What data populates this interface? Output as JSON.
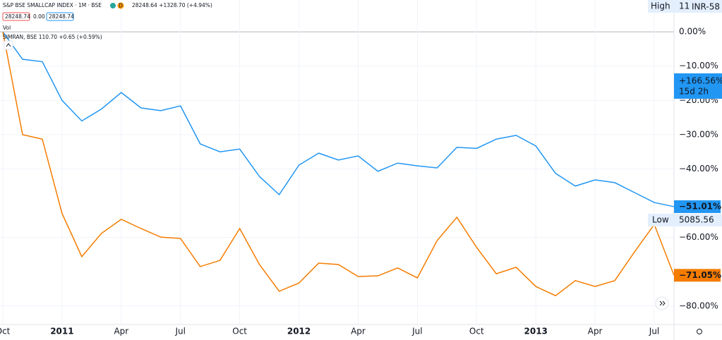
{
  "chart_data": {
    "type": "line",
    "header": {
      "symbol": "S&P BSE SMALLCAP INDEX · 1M · BSE",
      "quote": "28248.64 +1328.70 (+4.94%)",
      "bid": "28248.74",
      "spread": "0.00",
      "ask": "28248.74",
      "badge": "D",
      "volume": "Vol",
      "compare": "SIMRAN, BSE  110.70 +0.65 (+0.59%)"
    },
    "categories": [
      "Oct",
      null,
      null,
      "2011",
      null,
      null,
      "Apr",
      null,
      null,
      "Jul",
      null,
      null,
      "Oct",
      null,
      null,
      "2012",
      null,
      null,
      "Apr",
      null,
      null,
      "Jul",
      null,
      null,
      "Oct",
      null,
      null,
      "2013",
      null,
      null,
      "Apr",
      null,
      null,
      "Jul",
      null
    ],
    "series": [
      {
        "name": "S&P BSE SMALLCAP INDEX",
        "color": "#2196f3",
        "values": [
          0,
          -8,
          -8.7,
          -20,
          -26,
          -22.5,
          -17.7,
          -22.2,
          -23,
          -21.6,
          -32.7,
          -35,
          -34.2,
          -42.2,
          -47.5,
          -38.9,
          -35.4,
          -37.4,
          -36.2,
          -40.7,
          -38.3,
          -39.1,
          -39.7,
          -33.7,
          -34,
          -31.3,
          -30.2,
          -33.3,
          -41.3,
          -45,
          -43.2,
          -44,
          -46.9,
          -49.8,
          -51.01
        ],
        "value_labels": [
          null,
          null,
          null,
          null,
          null,
          null,
          null,
          null,
          null,
          null,
          null,
          null,
          null,
          null,
          null,
          null,
          null,
          null,
          null,
          null,
          null,
          null,
          null,
          null,
          null,
          null,
          null,
          null,
          null,
          null,
          null,
          null,
          null,
          null,
          "−51.01%"
        ]
      },
      {
        "name": "SIMRAN, BSE",
        "color": "#f57c00",
        "values": [
          0,
          -30,
          -31.3,
          -53,
          -65.6,
          -58.8,
          -54.7,
          -57.4,
          -59.9,
          -60.3,
          -68.5,
          -66.7,
          -57.4,
          -67.9,
          -75.7,
          -73.3,
          -67.5,
          -67.9,
          -71.4,
          -71.2,
          -68.9,
          -71.8,
          -60.9,
          -54.1,
          -62.9,
          -70.6,
          -68.7,
          -74.3,
          -77,
          -72.6,
          -74.3,
          -72.6,
          -64.2,
          -56.2,
          -71.05
        ],
        "value_labels": [
          null,
          null,
          null,
          null,
          null,
          null,
          null,
          null,
          null,
          null,
          null,
          null,
          null,
          null,
          null,
          null,
          null,
          null,
          null,
          null,
          null,
          null,
          null,
          null,
          null,
          null,
          null,
          null,
          null,
          null,
          null,
          null,
          null,
          null,
          "−71.05%"
        ]
      }
    ],
    "ylim": [
      -85.4,
      9.3
    ],
    "yticks": [
      {
        "value": 0,
        "label": "0.00%"
      },
      {
        "value": -10,
        "label": "−10.00%"
      },
      {
        "value": -20,
        "label": "−20.00%"
      },
      {
        "value": -30,
        "label": "−30.00%"
      },
      {
        "value": -40,
        "label": "−40.00%"
      },
      {
        "value": -60,
        "label": "−60.00%"
      },
      {
        "value": -80,
        "label": "−80.00%"
      }
    ],
    "grid": true,
    "badges": {
      "change": "+166.56%",
      "countdown": "15d 2h",
      "high": "High",
      "high_value": "11",
      "currency": "INR-58",
      "low": "Low",
      "low_value": "5085.56"
    }
  }
}
